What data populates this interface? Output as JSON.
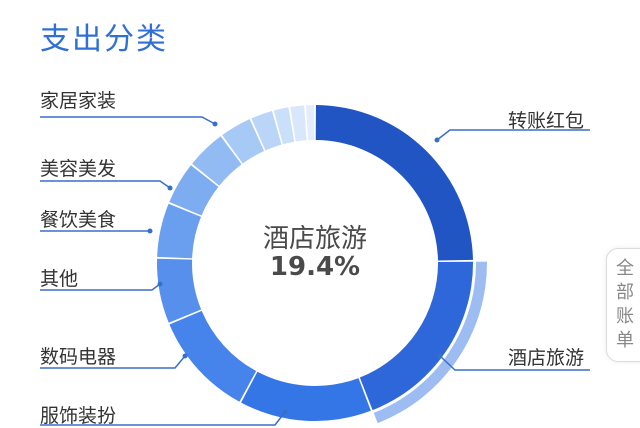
{
  "title": "支出分类",
  "center": {
    "name": "酒店旅游",
    "percent": "19.4%"
  },
  "side_tab": {
    "label": "全部账单"
  },
  "colors": {
    "title": "#2f6fd6",
    "leader": "#3a6fc8"
  },
  "chart_data": {
    "type": "pie",
    "categories": [
      "转账红包",
      "酒店旅游",
      "服饰装扮",
      "数码电器",
      "其他",
      "餐饮美食",
      "美容美发",
      "家居家装"
    ],
    "values": [
      24.8,
      19.4,
      13.7,
      10.9,
      6.8,
      5.7,
      4.5,
      4.2
    ],
    "unlabeled_values": [
      3.4,
      2.4,
      1.7,
      1.6,
      1.0
    ],
    "highlighted": "酒店旅游"
  }
}
